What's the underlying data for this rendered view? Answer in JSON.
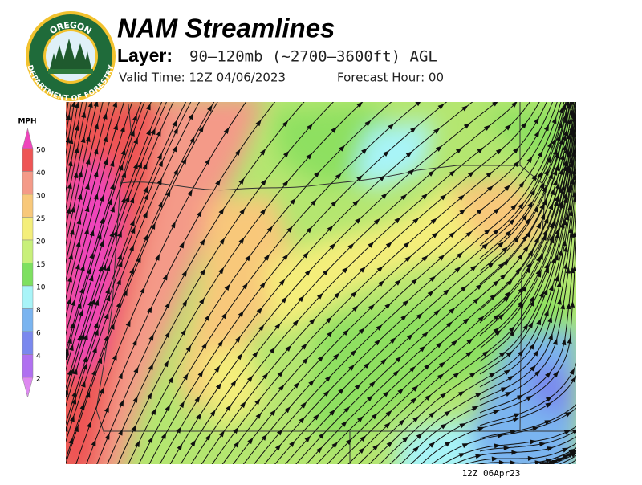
{
  "header": {
    "title": "NAM Streamlines",
    "layer_label": "Layer:",
    "layer_value": "90–120mb (~2700–3600ft) AGL",
    "valid_time": "Valid Time: 12Z 04/06/2023",
    "forecast_hour": "Forecast Hour: 00"
  },
  "logo": {
    "top_text": "OREGON",
    "bottom_text": "DEPARTMENT OF FORESTRY"
  },
  "legend": {
    "title": "MPH",
    "ticks": [
      50,
      40,
      30,
      25,
      20,
      15,
      10,
      8,
      6,
      4,
      2
    ],
    "colors": [
      "#ee44bb",
      "#ee5555",
      "#f49a88",
      "#f8c87a",
      "#f4ee7a",
      "#c8f07a",
      "#7ee060",
      "#a8f4f8",
      "#7ab4f0",
      "#7a88ee",
      "#b070f0",
      "#dd88f0"
    ]
  },
  "map": {
    "timestamp": "12Z 06Apr23"
  }
}
